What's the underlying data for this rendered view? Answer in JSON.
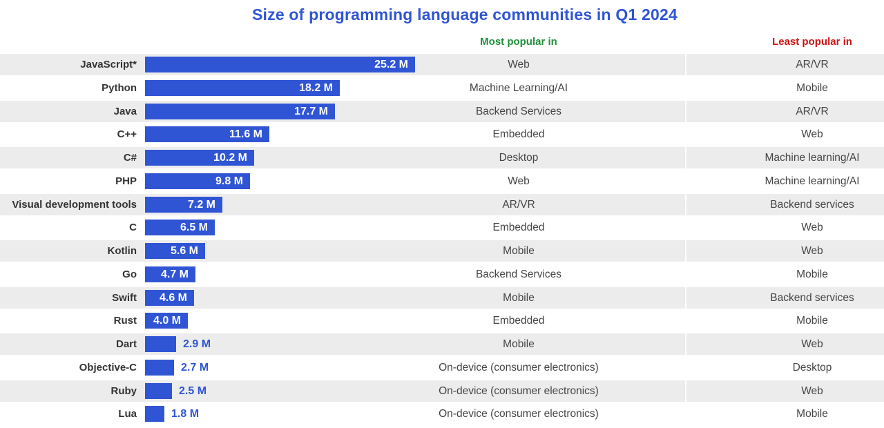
{
  "colors": {
    "bar": "#2f55d4",
    "title": "#2f55d4",
    "most_header": "#1f8f3a",
    "least_header": "#cc1111",
    "stripe": "#ececec"
  },
  "headers": {
    "most": "Most popular in",
    "least": "Least popular in"
  },
  "chart_data": {
    "type": "bar",
    "orientation": "horizontal",
    "title": "Size of programming language communities in Q1 2024",
    "unit": "million developers",
    "xlim": [
      0,
      25.2
    ],
    "categories": [
      "JavaScript*",
      "Python",
      "Java",
      "C++",
      "C#",
      "PHP",
      "Visual development tools",
      "C",
      "Kotlin",
      "Go",
      "Swift",
      "Rust",
      "Dart",
      "Objective-C",
      "Ruby",
      "Lua"
    ],
    "values": [
      25.2,
      18.2,
      17.7,
      11.6,
      10.2,
      9.8,
      7.2,
      6.5,
      5.6,
      4.7,
      4.6,
      4.0,
      2.9,
      2.7,
      2.5,
      1.8
    ],
    "value_labels": [
      "25.2 M",
      "18.2 M",
      "17.7 M",
      "11.6 M",
      "10.2 M",
      "9.8 M",
      "7.2 M",
      "6.5 M",
      "5.6 M",
      "4.7 M",
      "4.6 M",
      "4.0 M",
      "2.9 M",
      "2.7 M",
      "2.5 M",
      "1.8 M"
    ],
    "most_popular_in": [
      "Web",
      "Machine Learning/AI",
      "Backend Services",
      "Embedded",
      "Desktop",
      "Web",
      "AR/VR",
      "Embedded",
      "Mobile",
      "Backend Services",
      "Mobile",
      "Embedded",
      "Mobile",
      "On-device (consumer electronics)",
      "On-device (consumer electronics)",
      "On-device (consumer electronics)"
    ],
    "least_popular_in": [
      "AR/VR",
      "Mobile",
      "AR/VR",
      "Web",
      "Machine learning/AI",
      "Machine learning/AI",
      "Backend services",
      "Web",
      "Web",
      "Mobile",
      "Backend services",
      "Mobile",
      "Web",
      "Desktop",
      "Web",
      "Mobile"
    ]
  }
}
